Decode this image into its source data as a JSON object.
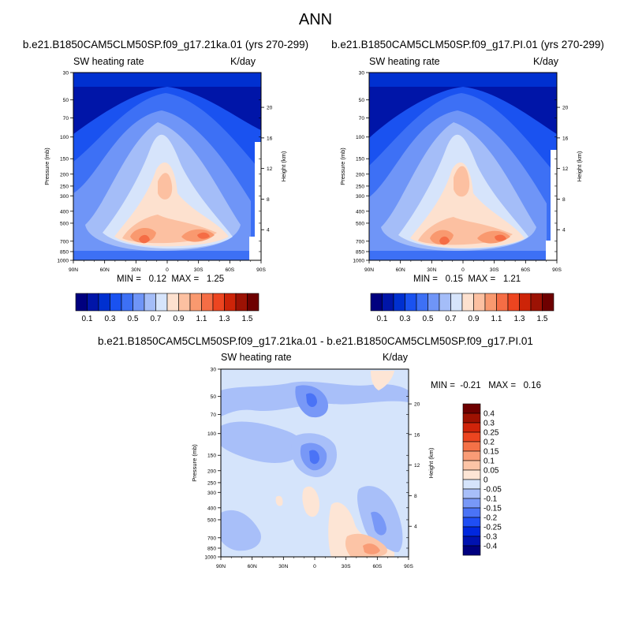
{
  "page": {
    "title": "ANN"
  },
  "panels": [
    {
      "id": "case1",
      "case_title": "b.e21.B1850CAM5CLM50SP.f09_g17.21ka.01 (yrs 270-299)",
      "variable_label": "SW heating rate",
      "units": "K/day",
      "min_label": "MIN =",
      "min_value": "0.12",
      "max_label": "MAX =",
      "max_value": "1.25"
    },
    {
      "id": "case2",
      "case_title": "b.e21.B1850CAM5CLM50SP.f09_g17.PI.01 (yrs 270-299)",
      "variable_label": "SW heating rate",
      "units": "K/day",
      "min_label": "MIN =",
      "min_value": "0.15",
      "max_label": "MAX =",
      "max_value": "1.21"
    },
    {
      "id": "diff",
      "case_title": "b.e21.B1850CAM5CLM50SP.f09_g17.21ka.01 - b.e21.B1850CAM5CLM50SP.f09_g17.PI.01",
      "variable_label": "SW heating rate",
      "units": "K/day",
      "min_label": "MIN =",
      "min_value": "-0.21",
      "max_label": "MAX =",
      "max_value": "0.16"
    }
  ],
  "chart_data": [
    {
      "type": "heatmap",
      "title": "SW heating rate",
      "units": "K/day",
      "x_tick_labels": [
        "90N",
        "60N",
        "30N",
        "0",
        "30S",
        "60S",
        "90S"
      ],
      "x_tick_values": [
        90,
        60,
        30,
        0,
        -30,
        -60,
        -90
      ],
      "ylabel": "Pressure (mb)",
      "y_scale": "log",
      "ylim": [
        1000,
        30
      ],
      "y_tick_labels": [
        "30",
        "50",
        "70",
        "100",
        "150",
        "200",
        "250",
        "300",
        "400",
        "500",
        "700",
        "850",
        "1000"
      ],
      "y_tick_values": [
        30,
        50,
        70,
        100,
        150,
        200,
        250,
        300,
        400,
        500,
        700,
        850,
        1000
      ],
      "y2label": "Height (km)",
      "y2_tick_labels": [
        "20",
        "16",
        "12",
        "8",
        "4"
      ],
      "y2_tick_values": [
        20,
        16,
        12,
        8,
        4
      ],
      "colorbar_levels": [
        0.1,
        0.2,
        0.3,
        0.4,
        0.5,
        0.6,
        0.7,
        0.8,
        0.9,
        1.0,
        1.1,
        1.2,
        1.3,
        1.4,
        1.5
      ],
      "colorbar_labels": [
        "0.1",
        "0.3",
        "0.5",
        "0.7",
        "0.9",
        "1.1",
        "1.3",
        "1.5"
      ],
      "min": 0.12,
      "max": 1.25
    },
    {
      "type": "heatmap",
      "title": "SW heating rate",
      "units": "K/day",
      "x_tick_labels": [
        "90N",
        "60N",
        "30N",
        "0",
        "30S",
        "60S",
        "90S"
      ],
      "x_tick_values": [
        90,
        60,
        30,
        0,
        -30,
        -60,
        -90
      ],
      "ylabel": "Pressure (mb)",
      "y_scale": "log",
      "ylim": [
        1000,
        30
      ],
      "y_tick_labels": [
        "30",
        "50",
        "70",
        "100",
        "150",
        "200",
        "250",
        "300",
        "400",
        "500",
        "700",
        "850",
        "1000"
      ],
      "y_tick_values": [
        30,
        50,
        70,
        100,
        150,
        200,
        250,
        300,
        400,
        500,
        700,
        850,
        1000
      ],
      "y2label": "Height (km)",
      "y2_tick_labels": [
        "20",
        "16",
        "12",
        "8",
        "4"
      ],
      "y2_tick_values": [
        20,
        16,
        12,
        8,
        4
      ],
      "colorbar_levels": [
        0.1,
        0.2,
        0.3,
        0.4,
        0.5,
        0.6,
        0.7,
        0.8,
        0.9,
        1.0,
        1.1,
        1.2,
        1.3,
        1.4,
        1.5
      ],
      "colorbar_labels": [
        "0.1",
        "0.3",
        "0.5",
        "0.7",
        "0.9",
        "1.1",
        "1.3",
        "1.5"
      ],
      "min": 0.15,
      "max": 1.21
    },
    {
      "type": "heatmap",
      "title": "SW heating rate",
      "units": "K/day",
      "x_tick_labels": [
        "90N",
        "60N",
        "30N",
        "0",
        "30S",
        "60S",
        "90S"
      ],
      "x_tick_values": [
        90,
        60,
        30,
        0,
        -30,
        -60,
        -90
      ],
      "ylabel": "Pressure (mb)",
      "y_scale": "log",
      "ylim": [
        1000,
        30
      ],
      "y_tick_labels": [
        "30",
        "50",
        "70",
        "100",
        "150",
        "200",
        "250",
        "300",
        "400",
        "500",
        "700",
        "850",
        "1000"
      ],
      "y_tick_values": [
        30,
        50,
        70,
        100,
        150,
        200,
        250,
        300,
        400,
        500,
        700,
        850,
        1000
      ],
      "y2label": "Height (km)",
      "y2_tick_labels": [
        "20",
        "16",
        "12",
        "8",
        "4"
      ],
      "y2_tick_values": [
        20,
        16,
        12,
        8,
        4
      ],
      "colorbar_levels": [
        0.4,
        0.3,
        0.25,
        0.2,
        0.15,
        0.1,
        0.05,
        0,
        -0.05,
        -0.1,
        -0.15,
        -0.2,
        -0.25,
        -0.3,
        -0.4
      ],
      "colorbar_labels": [
        "0.4",
        "0.3",
        "0.25",
        "0.2",
        "0.15",
        "0.1",
        "0.05",
        "0",
        "-0.05",
        "-0.1",
        "-0.15",
        "-0.2",
        "-0.25",
        "-0.3",
        "-0.4"
      ],
      "min": -0.21,
      "max": 0.16
    }
  ],
  "colors": {
    "abs_palette": [
      "#00007f",
      "#0015a8",
      "#0030d0",
      "#1a52f0",
      "#3d70f5",
      "#6f95f7",
      "#a4bdf8",
      "#d6e4fb",
      "#fde1cf",
      "#fcc0a1",
      "#f9996f",
      "#f56d45",
      "#ed4520",
      "#cd2408",
      "#9c1204",
      "#6e0000"
    ],
    "diff_palette": [
      "#00007f",
      "#0012b0",
      "#0027de",
      "#1f4ef4",
      "#4a73f6",
      "#7898f7",
      "#a8bff9",
      "#d5e4fb",
      "#fde5d5",
      "#fcc4a6",
      "#f99c76",
      "#f47147",
      "#ec4520",
      "#d0240a",
      "#9e1202",
      "#6e0000"
    ],
    "missing": "#ffffff"
  }
}
